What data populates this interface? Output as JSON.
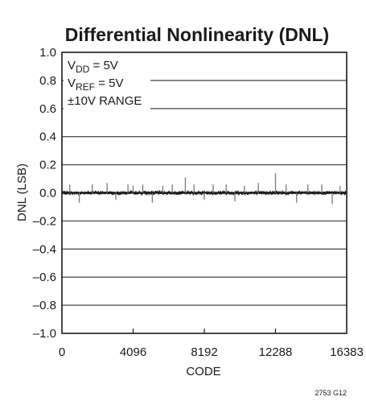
{
  "chart_data": {
    "type": "line",
    "title": "Differential Nonlinearity (DNL)",
    "xlabel": "CODE",
    "ylabel": "DNL (LSB)",
    "xlim": [
      0,
      16383
    ],
    "ylim": [
      -1.0,
      1.0
    ],
    "x_ticks": [
      0,
      4096,
      8192,
      12288,
      16383
    ],
    "x_tick_labels": [
      "0",
      "4096",
      "8192",
      "12288",
      "16383"
    ],
    "y_ticks": [
      -1.0,
      -0.8,
      -0.6,
      -0.4,
      -0.2,
      0.0,
      0.2,
      0.4,
      0.6,
      0.8,
      1.0
    ],
    "y_tick_labels": [
      "–1.0",
      "–0.8",
      "–0.6",
      "–0.4",
      "–0.2",
      "0.0",
      "0.2",
      "0.4",
      "0.6",
      "0.8",
      "1.0"
    ],
    "grid": "horizontal",
    "conditions": {
      "vdd": {
        "base": "V",
        "sub": "DD",
        "rest": " = 5V"
      },
      "vref": {
        "base": "V",
        "sub": "REF",
        "rest": " = 5V"
      },
      "range": "±10V RANGE"
    },
    "noise_band": 0.012,
    "spikes": [
      {
        "x": 450,
        "y": 0.06
      },
      {
        "x": 1000,
        "y": -0.07
      },
      {
        "x": 1750,
        "y": 0.06
      },
      {
        "x": 2600,
        "y": 0.07
      },
      {
        "x": 3100,
        "y": -0.05
      },
      {
        "x": 3800,
        "y": 0.06
      },
      {
        "x": 4096,
        "y": 0.05
      },
      {
        "x": 4650,
        "y": 0.06
      },
      {
        "x": 5200,
        "y": -0.07
      },
      {
        "x": 5800,
        "y": 0.05
      },
      {
        "x": 6350,
        "y": 0.06
      },
      {
        "x": 7100,
        "y": 0.11
      },
      {
        "x": 7600,
        "y": 0.06
      },
      {
        "x": 8192,
        "y": -0.05
      },
      {
        "x": 8700,
        "y": 0.06
      },
      {
        "x": 9450,
        "y": 0.06
      },
      {
        "x": 9950,
        "y": -0.06
      },
      {
        "x": 10500,
        "y": 0.05
      },
      {
        "x": 11300,
        "y": 0.07
      },
      {
        "x": 12288,
        "y": 0.14
      },
      {
        "x": 12900,
        "y": 0.06
      },
      {
        "x": 13500,
        "y": -0.07
      },
      {
        "x": 14150,
        "y": 0.06
      },
      {
        "x": 14950,
        "y": 0.06
      },
      {
        "x": 15550,
        "y": -0.08
      },
      {
        "x": 16000,
        "y": 0.05
      }
    ]
  },
  "figure_code": "2753 G12"
}
